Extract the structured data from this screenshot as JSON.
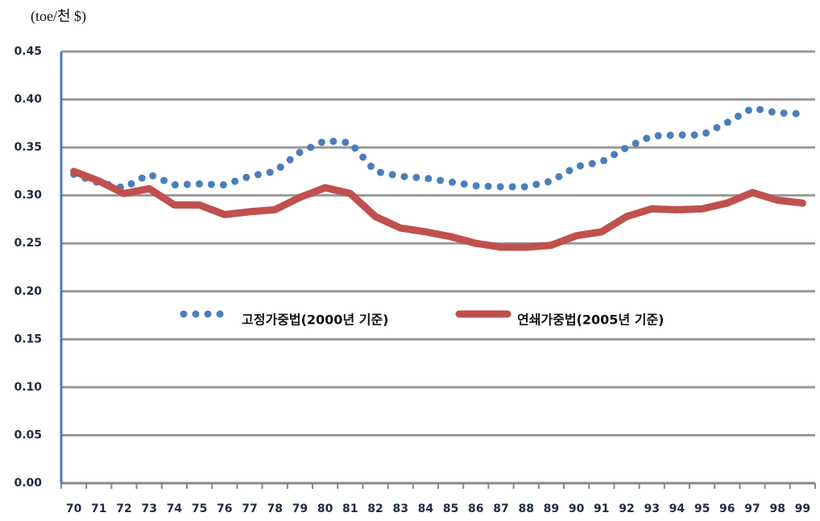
{
  "chart_data": {
    "type": "line",
    "y_unit": "(toe/천 $)",
    "categories": [
      "70",
      "71",
      "72",
      "73",
      "74",
      "75",
      "76",
      "77",
      "78",
      "79",
      "80",
      "81",
      "82",
      "83",
      "84",
      "85",
      "86",
      "87",
      "88",
      "89",
      "90",
      "91",
      "92",
      "93",
      "94",
      "95",
      "96",
      "97",
      "98",
      "99"
    ],
    "series": [
      {
        "name": "고정가중법(2000년 기준)",
        "color": "#4a7ebb",
        "style": "dotted",
        "values": [
          0.322,
          0.313,
          0.308,
          0.322,
          0.311,
          0.312,
          0.311,
          0.32,
          0.325,
          0.345,
          0.357,
          0.355,
          0.325,
          0.32,
          0.318,
          0.314,
          0.31,
          0.309,
          0.309,
          0.315,
          0.33,
          0.335,
          0.35,
          0.362,
          0.363,
          0.363,
          0.376,
          0.391,
          0.386,
          0.385
        ]
      },
      {
        "name": "연쇄가중법(2005년 기준)",
        "color": "#c0504d",
        "style": "solid",
        "values": [
          0.325,
          0.315,
          0.302,
          0.307,
          0.29,
          0.29,
          0.28,
          0.283,
          0.285,
          0.298,
          0.308,
          0.302,
          0.278,
          0.266,
          0.262,
          0.257,
          0.25,
          0.246,
          0.246,
          0.248,
          0.258,
          0.262,
          0.278,
          0.286,
          0.285,
          0.286,
          0.292,
          0.303,
          0.295,
          0.292
        ]
      }
    ],
    "ylim": [
      0,
      0.45
    ],
    "yticks": [
      {
        "value": 0,
        "label": "0.00"
      },
      0.05,
      {
        "value": 0.1,
        "label": "0.10"
      },
      0.15,
      {
        "value": 0.2,
        "label": "0.20"
      },
      0.25,
      {
        "value": 0.3,
        "label": "0.30"
      },
      0.35,
      {
        "value": 0.4,
        "label": "0.40"
      },
      0.45
    ],
    "grid": true
  }
}
